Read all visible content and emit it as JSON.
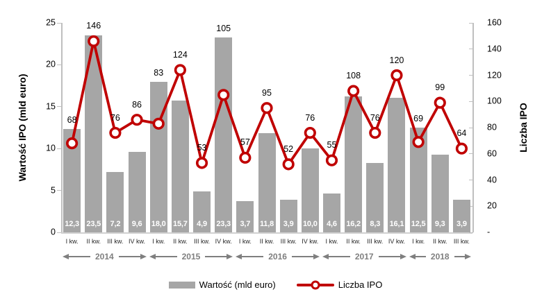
{
  "chart_data": {
    "type": "combo-bar-line",
    "categories": [
      "I kw.",
      "II kw.",
      "III kw.",
      "IV kw.",
      "I kw.",
      "II kw.",
      "III kw.",
      "IV kw.",
      "I kw.",
      "II kw.",
      "III kw.",
      "IV kw.",
      "I kw.",
      "II kw.",
      "III kw.",
      "IV kw.",
      "I kw.",
      "II kw.",
      "III kw."
    ],
    "year_groups": [
      {
        "label": "2014",
        "span": 4
      },
      {
        "label": "2015",
        "span": 4
      },
      {
        "label": "2016",
        "span": 4
      },
      {
        "label": "2017",
        "span": 4
      },
      {
        "label": "2018",
        "span": 3
      }
    ],
    "series": [
      {
        "name": "Wartość (mld euro)",
        "type": "bar",
        "axis": "left",
        "values": [
          12.3,
          23.5,
          7.2,
          9.6,
          18.0,
          15.7,
          4.9,
          23.3,
          3.7,
          11.8,
          3.9,
          10.0,
          4.6,
          16.2,
          8.3,
          16.1,
          12.5,
          9.3,
          3.9
        ],
        "labels": [
          "12,3",
          "23,5",
          "7,2",
          "9,6",
          "18,0",
          "15,7",
          "4,9",
          "23,3",
          "3,7",
          "11,8",
          "3,9",
          "10,0",
          "4,6",
          "16,2",
          "8,3",
          "16,1",
          "12,5",
          "9,3",
          "3,9"
        ]
      },
      {
        "name": "Liczba IPO",
        "type": "line",
        "axis": "right",
        "values": [
          68,
          146,
          76,
          86,
          83,
          124,
          53,
          105,
          57,
          95,
          52,
          76,
          55,
          108,
          76,
          120,
          69,
          99,
          64
        ],
        "labels": [
          "68",
          "146",
          "76",
          "86",
          "83",
          "124",
          "53",
          "105",
          "57",
          "95",
          "52",
          "76",
          "55",
          "108",
          "76",
          "120",
          "69",
          "99",
          "64"
        ]
      }
    ],
    "left_axis": {
      "title": "Wartość IPO (mld euro)",
      "min": 0,
      "max": 25,
      "ticks": [
        {
          "value": 25,
          "label": "25"
        },
        {
          "value": 20,
          "label": "20"
        },
        {
          "value": 15,
          "label": "15"
        },
        {
          "value": 10,
          "label": "10"
        },
        {
          "value": 5,
          "label": "5"
        },
        {
          "value": 0,
          "label": "0"
        }
      ]
    },
    "right_axis": {
      "title": "Liczba IPO",
      "min": 0,
      "max": 160,
      "ticks": [
        {
          "value": 160,
          "label": "160"
        },
        {
          "value": 140,
          "label": "140"
        },
        {
          "value": 120,
          "label": "120"
        },
        {
          "value": 100,
          "label": "100"
        },
        {
          "value": 80,
          "label": "80"
        },
        {
          "value": 60,
          "label": "60"
        },
        {
          "value": 40,
          "label": "40"
        },
        {
          "value": 20,
          "label": "20"
        },
        {
          "value": 0,
          "label": "-"
        }
      ]
    },
    "legend": [
      {
        "label": "Wartość (mld euro)",
        "swatch": "bar"
      },
      {
        "label": "Liczba IPO",
        "swatch": "line"
      }
    ],
    "colors": {
      "bar": "#A6A6A6",
      "line": "#C00000",
      "marker_fill": "#FFFFFF",
      "axis_line": "#BFBFBF",
      "baseline": "#D0D0D0",
      "tick_label": "#000000",
      "quarter_label": "#262626",
      "year": "#7F7F7F",
      "bar_label": "#FFFFFF",
      "data_label": "#000000"
    },
    "grid": "off",
    "legend_position": "bottom-center"
  }
}
